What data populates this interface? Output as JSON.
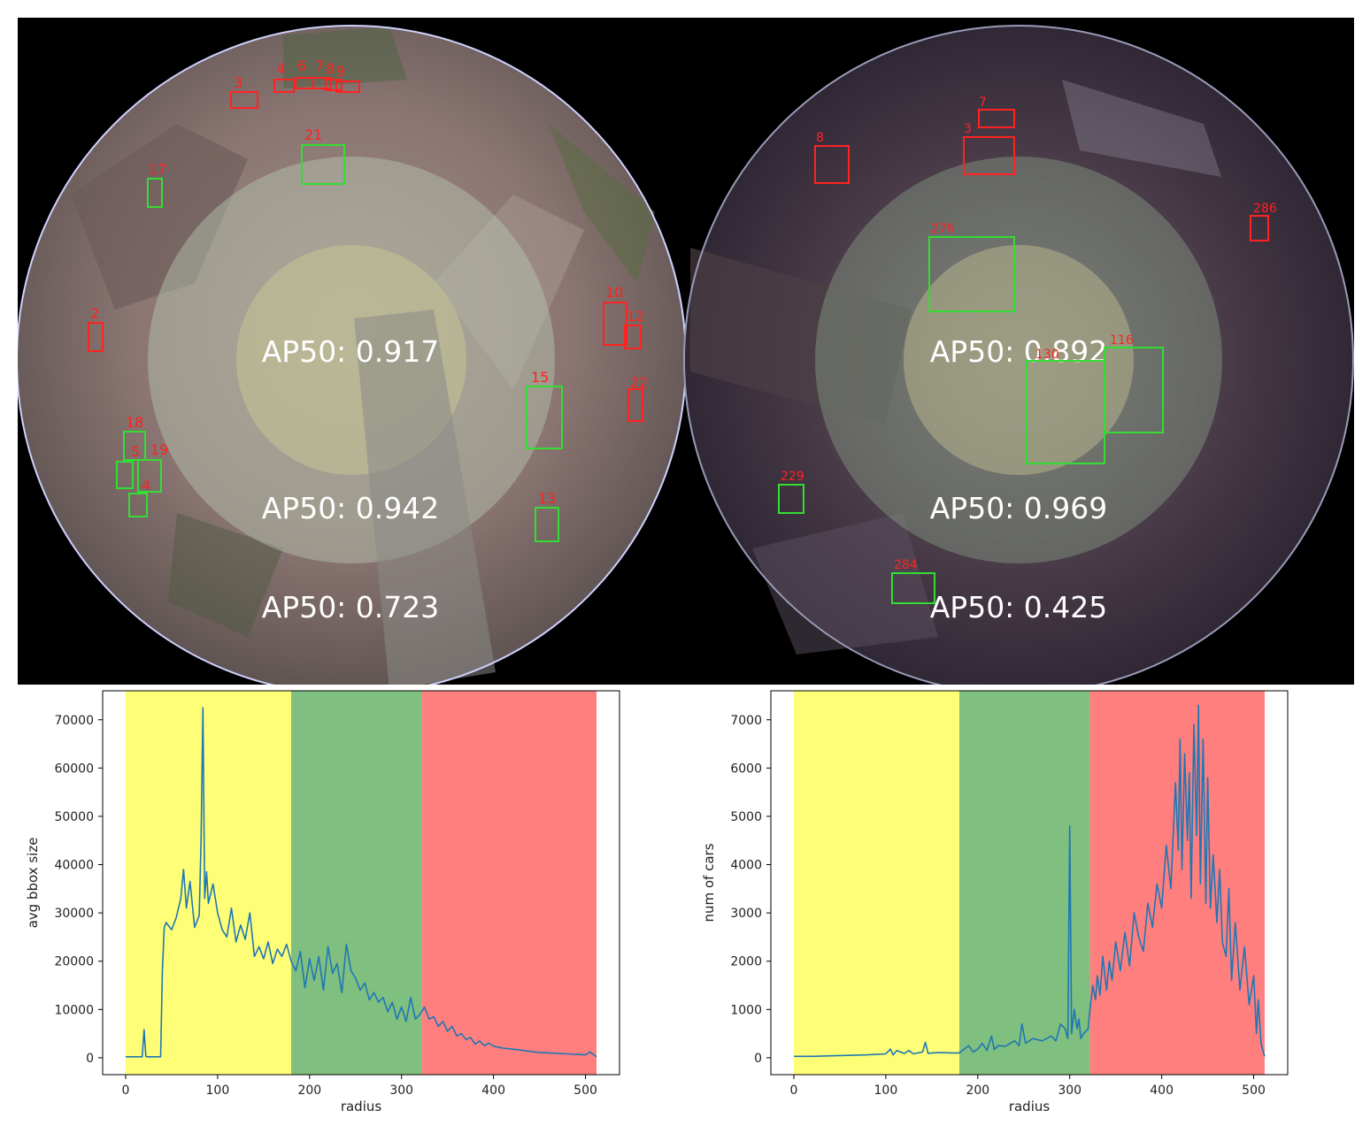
{
  "panels": [
    {
      "name": "left",
      "ap_labels": [
        "AP50: 0.917",
        "AP50: 0.942",
        "AP50: 0.723"
      ],
      "boxes": [
        {
          "id": "3",
          "color": "red"
        },
        {
          "id": "4",
          "color": "red"
        },
        {
          "id": "6",
          "color": "red"
        },
        {
          "id": "7",
          "color": "red"
        },
        {
          "id": "8",
          "color": "red"
        },
        {
          "id": "9",
          "color": "red"
        },
        {
          "id": "21",
          "color": "green"
        },
        {
          "id": "17",
          "color": "green"
        },
        {
          "id": "2",
          "color": "red"
        },
        {
          "id": "10",
          "color": "red"
        },
        {
          "id": "12",
          "color": "red"
        },
        {
          "id": "22",
          "color": "red"
        },
        {
          "id": "15",
          "color": "green"
        },
        {
          "id": "18",
          "color": "green"
        },
        {
          "id": "19",
          "color": "green"
        },
        {
          "id": "5",
          "color": "green"
        },
        {
          "id": "4",
          "color": "green"
        },
        {
          "id": "13",
          "color": "green"
        }
      ]
    },
    {
      "name": "right",
      "ap_labels": [
        "AP50: 0.892",
        "AP50: 0.969",
        "AP50: 0.425"
      ],
      "boxes": [
        {
          "id": "7",
          "color": "red"
        },
        {
          "id": "8",
          "color": "red"
        },
        {
          "id": "3",
          "color": "red"
        },
        {
          "id": "286",
          "color": "red"
        },
        {
          "id": "276",
          "color": "green"
        },
        {
          "id": "116",
          "color": "green"
        },
        {
          "id": "130",
          "color": "green"
        },
        {
          "id": "229",
          "color": "green"
        },
        {
          "id": "284",
          "color": "green"
        }
      ]
    }
  ],
  "colors": {
    "zone_yellow": "#ffff77",
    "zone_green": "#7fbf7f",
    "zone_red": "#ff7f7f",
    "line": "#1f77b4",
    "box_red": "#ff2222",
    "box_green": "#33dd33"
  },
  "chart_data": [
    {
      "type": "line",
      "xlabel": "radius",
      "ylabel": "avg bbox size",
      "xlim": [
        -25,
        537
      ],
      "ylim": [
        -3500,
        76000
      ],
      "xticks": [
        0,
        100,
        200,
        300,
        400,
        500
      ],
      "yticks": [
        0,
        10000,
        20000,
        30000,
        40000,
        50000,
        60000,
        70000
      ],
      "zones": [
        {
          "from": 0,
          "to": 180,
          "color": "yellow"
        },
        {
          "from": 180,
          "to": 322,
          "color": "green"
        },
        {
          "from": 322,
          "to": 512,
          "color": "red"
        }
      ],
      "x": [
        0,
        18,
        20,
        22,
        24,
        38,
        40,
        42,
        44,
        50,
        55,
        60,
        63,
        66,
        70,
        75,
        80,
        82,
        84,
        86,
        88,
        90,
        95,
        100,
        105,
        110,
        115,
        120,
        125,
        130,
        135,
        140,
        145,
        150,
        155,
        160,
        165,
        170,
        175,
        180,
        185,
        190,
        195,
        200,
        205,
        210,
        215,
        220,
        225,
        230,
        235,
        240,
        245,
        250,
        255,
        260,
        265,
        270,
        275,
        280,
        285,
        290,
        295,
        300,
        305,
        310,
        315,
        320,
        325,
        330,
        335,
        340,
        345,
        350,
        355,
        360,
        365,
        370,
        375,
        380,
        385,
        390,
        395,
        400,
        410,
        420,
        430,
        440,
        450,
        460,
        470,
        480,
        490,
        500,
        505,
        512
      ],
      "values": [
        200,
        200,
        5800,
        300,
        200,
        200,
        18000,
        27000,
        28000,
        26500,
        29000,
        33000,
        39000,
        31000,
        36500,
        27000,
        29500,
        45000,
        72500,
        33000,
        38500,
        32000,
        36000,
        30000,
        26500,
        25000,
        31000,
        24000,
        27500,
        24500,
        30000,
        21000,
        23000,
        20500,
        24000,
        19500,
        22500,
        21000,
        23500,
        20000,
        18000,
        22000,
        14500,
        20500,
        16000,
        21000,
        14000,
        23000,
        17500,
        19500,
        13500,
        23500,
        18000,
        16500,
        14000,
        15500,
        12000,
        13500,
        11500,
        12500,
        9500,
        11500,
        8000,
        10500,
        7500,
        12500,
        8000,
        9000,
        10500,
        8000,
        8500,
        6500,
        7500,
        5500,
        6500,
        4500,
        5000,
        3800,
        4200,
        2800,
        3500,
        2500,
        3000,
        2400,
        2000,
        1800,
        1600,
        1300,
        1100,
        1000,
        900,
        800,
        700,
        600,
        1200,
        200
      ]
    },
    {
      "type": "line",
      "xlabel": "radius",
      "ylabel": "num of cars",
      "xlim": [
        -25,
        537
      ],
      "ylim": [
        -350,
        7600
      ],
      "xticks": [
        0,
        100,
        200,
        300,
        400,
        500
      ],
      "yticks": [
        0,
        1000,
        2000,
        3000,
        4000,
        5000,
        6000,
        7000
      ],
      "zones": [
        {
          "from": 0,
          "to": 180,
          "color": "yellow"
        },
        {
          "from": 180,
          "to": 322,
          "color": "green"
        },
        {
          "from": 322,
          "to": 512,
          "color": "red"
        }
      ],
      "x": [
        0,
        20,
        40,
        60,
        80,
        100,
        105,
        108,
        112,
        120,
        125,
        130,
        140,
        143,
        146,
        150,
        160,
        170,
        180,
        190,
        195,
        200,
        205,
        210,
        215,
        218,
        222,
        230,
        240,
        245,
        248,
        252,
        260,
        270,
        280,
        285,
        290,
        295,
        298,
        300,
        302,
        305,
        308,
        310,
        312,
        315,
        320,
        322,
        325,
        328,
        330,
        333,
        336,
        340,
        343,
        346,
        350,
        355,
        360,
        365,
        370,
        375,
        380,
        385,
        390,
        395,
        400,
        405,
        410,
        415,
        418,
        420,
        422,
        425,
        428,
        430,
        432,
        435,
        438,
        440,
        442,
        445,
        448,
        450,
        453,
        456,
        460,
        463,
        466,
        470,
        473,
        476,
        480,
        485,
        490,
        495,
        500,
        503,
        505,
        508,
        510,
        512
      ],
      "values": [
        30,
        30,
        40,
        50,
        60,
        80,
        180,
        60,
        150,
        90,
        150,
        80,
        120,
        320,
        90,
        100,
        110,
        100,
        100,
        250,
        120,
        180,
        300,
        150,
        450,
        170,
        250,
        240,
        350,
        250,
        700,
        300,
        400,
        350,
        450,
        350,
        700,
        600,
        400,
        4800,
        500,
        1000,
        600,
        800,
        400,
        500,
        600,
        1000,
        1500,
        1200,
        1700,
        1300,
        2100,
        1400,
        2000,
        1600,
        2400,
        1800,
        2600,
        1900,
        3000,
        2500,
        2200,
        3200,
        2700,
        3600,
        3100,
        4400,
        3500,
        5700,
        4300,
        6600,
        3900,
        6300,
        4500,
        5900,
        3300,
        6900,
        4600,
        7300,
        3600,
        6600,
        3200,
        5800,
        3100,
        4200,
        2800,
        3900,
        2400,
        2100,
        3500,
        1600,
        2800,
        1400,
        2300,
        1100,
        1700,
        500,
        1200,
        300,
        150,
        30
      ]
    }
  ]
}
